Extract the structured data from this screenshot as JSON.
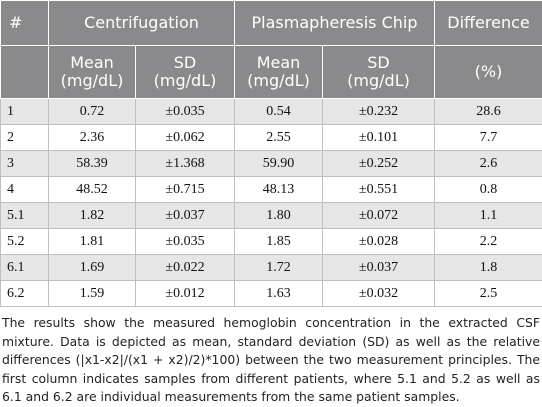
{
  "table": {
    "header": {
      "index_label": "#",
      "group_centrifugation": "Centrifugation",
      "group_chip": "Plasmapheresis Chip",
      "group_difference": "Difference",
      "mean_line1": "Mean",
      "mean_line2": "(mg/dL)",
      "sd_line1": "SD",
      "sd_line2": "(mg/dL)",
      "difference_unit": "(%)"
    },
    "rows": [
      {
        "id": "1",
        "cf_mean": "0.72",
        "cf_sd": "±0.035",
        "pc_mean": "0.54",
        "pc_sd": "±0.232",
        "diff": "28.6"
      },
      {
        "id": "2",
        "cf_mean": "2.36",
        "cf_sd": "±0.062",
        "pc_mean": "2.55",
        "pc_sd": "±0.101",
        "diff": "7.7"
      },
      {
        "id": "3",
        "cf_mean": "58.39",
        "cf_sd": "±1.368",
        "pc_mean": "59.90",
        "pc_sd": "±0.252",
        "diff": "2.6"
      },
      {
        "id": "4",
        "cf_mean": "48.52",
        "cf_sd": "±0.715",
        "pc_mean": "48.13",
        "pc_sd": "±0.551",
        "diff": "0.8"
      },
      {
        "id": "5.1",
        "cf_mean": "1.82",
        "cf_sd": "±0.037",
        "pc_mean": "1.80",
        "pc_sd": "±0.072",
        "diff": "1.1"
      },
      {
        "id": "5.2",
        "cf_mean": "1.81",
        "cf_sd": "±0.035",
        "pc_mean": "1.85",
        "pc_sd": "±0.028",
        "diff": "2.2"
      },
      {
        "id": "6.1",
        "cf_mean": "1.69",
        "cf_sd": "±0.022",
        "pc_mean": "1.72",
        "pc_sd": "±0.037",
        "diff": "1.8"
      },
      {
        "id": "6.2",
        "cf_mean": "1.59",
        "cf_sd": "±0.012",
        "pc_mean": "1.63",
        "pc_sd": "±0.032",
        "diff": "2.5"
      }
    ]
  },
  "caption": "The results show the measured hemoglobin concentration in the extracted CSF mixture. Data is depicted as mean, standard deviation (SD) as well as the relative differences (|x1-x2|/(x1 + x2)/2)*100) between the two measurement principles. The first column indicates samples from different patients, where 5.1 and 5.2 as well as 6.1 and 6.2 are individual measurements from the same patient samples.",
  "colors": {
    "header_bg": "#8a8a8c",
    "header_text": "#ffffff",
    "row_shade": "#e6e6e6",
    "grid": "#bfbfbf"
  }
}
